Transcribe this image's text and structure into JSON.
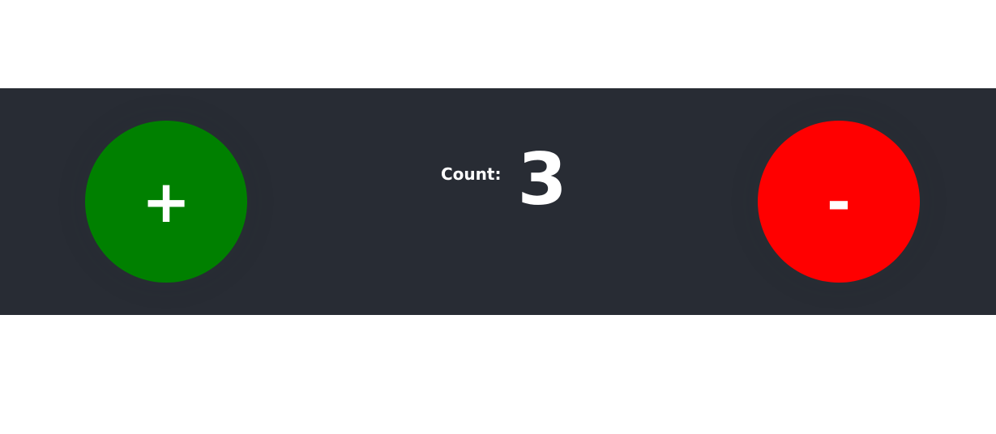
{
  "counter": {
    "increment_label": "+",
    "decrement_label": "-",
    "count_label": "Count:",
    "count_value": "3"
  },
  "colors": {
    "band_background": "#282c34",
    "increment_button": "#008000",
    "decrement_button": "#ff0000",
    "text": "#ffffff",
    "page_background": "#ffffff"
  }
}
